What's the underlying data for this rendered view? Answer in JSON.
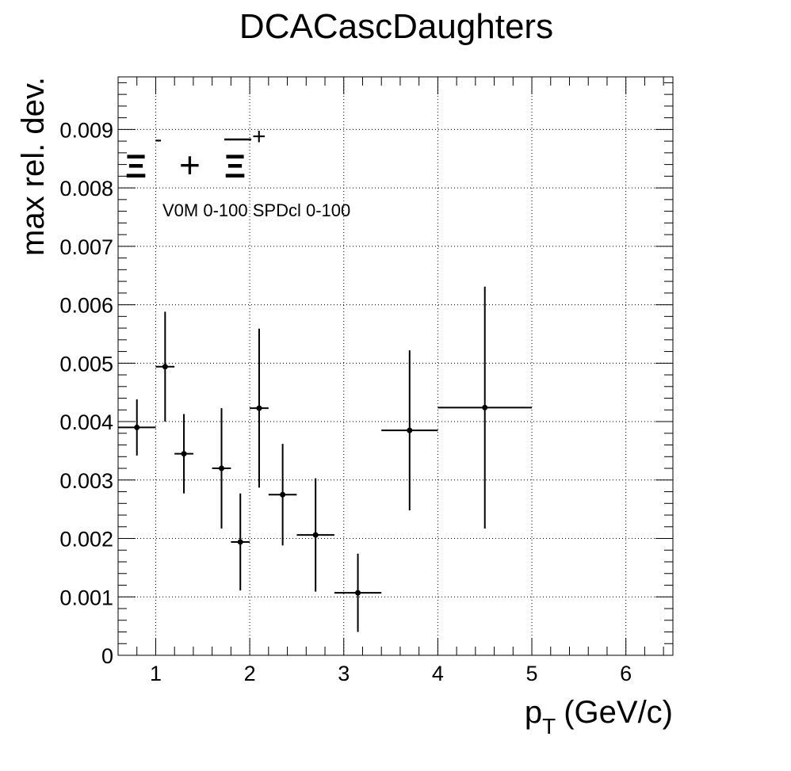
{
  "chart_data": {
    "type": "scatter",
    "title": "DCACascDaughters",
    "xlabel": "p",
    "xlabel_sub": "T",
    "xlabel_unit": "(GeV/c)",
    "ylabel": "max rel. dev.",
    "legend": {
      "particle_a": "Ξ",
      "particle_a_sup": "-",
      "plus_sign": "+",
      "particle_b": "Ξ",
      "particle_b_sup": "+"
    },
    "annotation": "V0M 0-100 SPDcl 0-100",
    "xlim": [
      0.6,
      6.5
    ],
    "ylim": [
      0,
      0.0099
    ],
    "xticks": [
      1,
      2,
      3,
      4,
      5,
      6
    ],
    "xtick_labels": [
      "1",
      "2",
      "3",
      "4",
      "5",
      "6"
    ],
    "yticks": [
      0,
      0.001,
      0.002,
      0.003,
      0.004,
      0.005,
      0.006,
      0.007,
      0.008,
      0.009
    ],
    "ytick_labels": [
      "0",
      "0.001",
      "0.002",
      "0.003",
      "0.004",
      "0.005",
      "0.006",
      "0.007",
      "0.008",
      "0.009"
    ],
    "grid": true,
    "points": [
      {
        "x": 0.8,
        "xlo": 0.6,
        "xhi": 1.0,
        "y": 0.0039,
        "yerr": 0.00048
      },
      {
        "x": 1.1,
        "xlo": 1.0,
        "xhi": 1.2,
        "y": 0.00494,
        "yerr": 0.00094
      },
      {
        "x": 1.3,
        "xlo": 1.2,
        "xhi": 1.4,
        "y": 0.00345,
        "yerr": 0.00068
      },
      {
        "x": 1.7,
        "xlo": 1.6,
        "xhi": 1.8,
        "y": 0.0032,
        "yerr": 0.00103
      },
      {
        "x": 1.9,
        "xlo": 1.8,
        "xhi": 2.0,
        "y": 0.00194,
        "yerr": 0.00083
      },
      {
        "x": 2.1,
        "xlo": 2.0,
        "xhi": 2.2,
        "y": 0.00423,
        "yerr": 0.00136
      },
      {
        "x": 2.35,
        "xlo": 2.2,
        "xhi": 2.5,
        "y": 0.00275,
        "yerr": 0.00087
      },
      {
        "x": 2.7,
        "xlo": 2.5,
        "xhi": 2.9,
        "y": 0.00206,
        "yerr": 0.00097
      },
      {
        "x": 3.15,
        "xlo": 2.9,
        "xhi": 3.4,
        "y": 0.00107,
        "yerr": 0.00067
      },
      {
        "x": 3.7,
        "xlo": 3.4,
        "xhi": 4.0,
        "y": 0.00385,
        "yerr": 0.00137
      },
      {
        "x": 4.5,
        "xlo": 4.0,
        "xhi": 5.0,
        "y": 0.00424,
        "yerr": 0.00207
      }
    ]
  }
}
